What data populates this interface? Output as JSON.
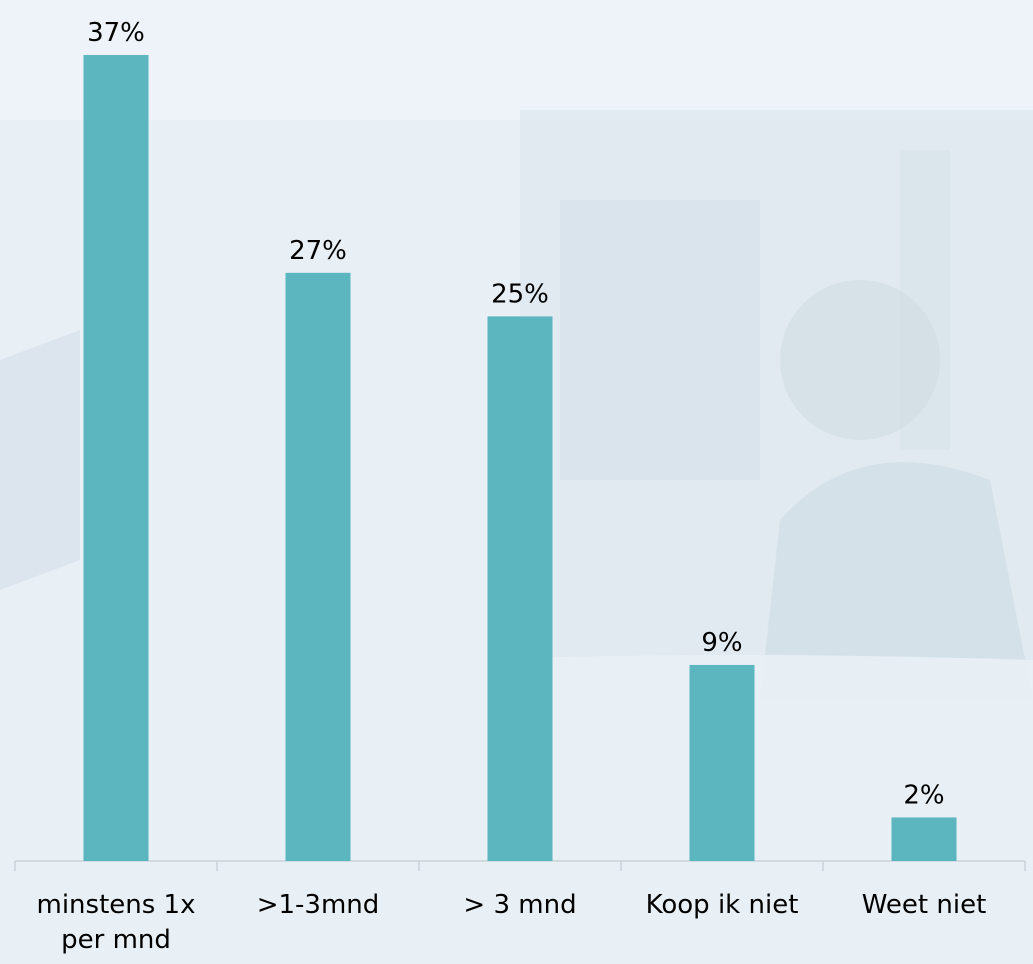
{
  "chart_data": {
    "type": "bar",
    "title": "",
    "xlabel": "",
    "ylabel": "",
    "categories": [
      [
        "minstens 1x",
        "per mnd"
      ],
      [
        ">1-3mnd"
      ],
      [
        "> 3 mnd"
      ],
      [
        "Koop ik niet"
      ],
      [
        "Weet niet"
      ]
    ],
    "values": [
      37,
      27,
      25,
      9,
      2
    ],
    "data_labels": [
      "37%",
      "27%",
      "25%",
      "9%",
      "2%"
    ],
    "unit": "%",
    "ylim": [
      0,
      37
    ],
    "grid": false,
    "legend": "none"
  },
  "colors": {
    "bar": "#5bb6c0",
    "axis": "#c9d2d8",
    "text": "#000000",
    "background": "#e6eef4"
  }
}
